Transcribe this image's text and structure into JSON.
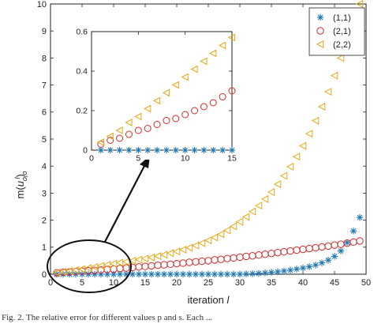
{
  "colors": {
    "series_1_1": "#1f77b4",
    "series_2_1": "#d62728",
    "series_2_2": "#e6a817",
    "axis": "#222222"
  },
  "chart_data": [
    {
      "type": "scatter",
      "title": "",
      "xlabel": "iteration l",
      "ylabel": "m(u_{o,o}^l)",
      "xlim": [
        0,
        50
      ],
      "ylim": [
        0,
        10
      ],
      "xticks": [
        "0",
        "5",
        "10",
        "15",
        "20",
        "25",
        "30",
        "35",
        "40",
        "45",
        "50"
      ],
      "yticks": [
        "0",
        "1",
        "2",
        "3",
        "4",
        "5",
        "6",
        "7",
        "8",
        "9",
        "10"
      ],
      "legend_position": "top-right",
      "legend": [
        "(1,1)",
        "(2,1)",
        "(2,2)"
      ],
      "series": [
        {
          "name": "(1,1)",
          "marker": "asterisk",
          "color": "#1f77b4",
          "x": [
            1,
            2,
            3,
            4,
            5,
            6,
            7,
            8,
            9,
            10,
            11,
            12,
            13,
            14,
            15,
            16,
            17,
            18,
            19,
            20,
            21,
            22,
            23,
            24,
            25,
            26,
            27,
            28,
            29,
            30,
            31,
            32,
            33,
            34,
            35,
            36,
            37,
            38,
            39,
            40,
            41,
            42,
            43,
            44,
            45,
            46,
            47,
            48,
            49
          ],
          "values": [
            0,
            0,
            0,
            0,
            0,
            0,
            0,
            0,
            0,
            0,
            0,
            0,
            0,
            0,
            0,
            0,
            0,
            0,
            0,
            0,
            0,
            0,
            0,
            0,
            0,
            0,
            0,
            0,
            0,
            0,
            0.01,
            0.02,
            0.03,
            0.05,
            0.07,
            0.09,
            0.12,
            0.15,
            0.19,
            0.23,
            0.28,
            0.34,
            0.42,
            0.52,
            0.66,
            0.86,
            1.17,
            1.6,
            2.1
          ]
        },
        {
          "name": "(2,1)",
          "marker": "circle",
          "color": "#d62728",
          "x": [
            1,
            2,
            3,
            4,
            5,
            6,
            7,
            8,
            9,
            10,
            11,
            12,
            13,
            14,
            15,
            16,
            17,
            18,
            19,
            20,
            21,
            22,
            23,
            24,
            25,
            26,
            27,
            28,
            29,
            30,
            31,
            32,
            33,
            34,
            35,
            36,
            37,
            38,
            39,
            40,
            41,
            42,
            43,
            44,
            45,
            46,
            47,
            48,
            49
          ],
          "values": [
            0.05,
            0.07,
            0.08,
            0.1,
            0.11,
            0.13,
            0.14,
            0.16,
            0.18,
            0.19,
            0.21,
            0.23,
            0.25,
            0.27,
            0.29,
            0.31,
            0.33,
            0.35,
            0.37,
            0.39,
            0.41,
            0.44,
            0.46,
            0.48,
            0.5,
            0.53,
            0.55,
            0.58,
            0.6,
            0.63,
            0.66,
            0.68,
            0.71,
            0.74,
            0.77,
            0.8,
            0.83,
            0.86,
            0.89,
            0.92,
            0.95,
            0.98,
            1.01,
            1.04,
            1.08,
            1.11,
            1.15,
            1.19,
            1.23
          ]
        },
        {
          "name": "(2,2)",
          "marker": "triangle-left",
          "color": "#e6a817",
          "x": [
            1,
            2,
            3,
            4,
            5,
            6,
            7,
            8,
            9,
            10,
            11,
            12,
            13,
            14,
            15,
            16,
            17,
            18,
            19,
            20,
            21,
            22,
            23,
            24,
            25,
            26,
            27,
            28,
            29,
            30,
            31,
            32,
            33,
            34,
            35,
            36,
            37,
            38,
            39,
            40,
            41,
            42,
            43,
            44,
            45,
            46,
            47,
            48,
            49
          ],
          "values": [
            0.06,
            0.09,
            0.12,
            0.16,
            0.19,
            0.23,
            0.27,
            0.31,
            0.35,
            0.39,
            0.43,
            0.46,
            0.5,
            0.54,
            0.58,
            0.62,
            0.67,
            0.72,
            0.78,
            0.84,
            0.91,
            0.98,
            1.06,
            1.15,
            1.25,
            1.36,
            1.48,
            1.62,
            1.77,
            1.94,
            2.12,
            2.32,
            2.54,
            2.78,
            3.04,
            3.33,
            3.64,
            3.98,
            4.35,
            4.75,
            5.2,
            5.68,
            6.2,
            6.75,
            7.35,
            8.0,
            8.7,
            9.25,
            10.0
          ]
        }
      ]
    },
    {
      "type": "scatter",
      "title": "",
      "xlabel": "",
      "ylabel": "",
      "xlim": [
        0,
        15
      ],
      "ylim": [
        0,
        0.6
      ],
      "xticks": [
        "0",
        "5",
        "10",
        "15"
      ],
      "yticks": [
        "0",
        "0.2",
        "0.4",
        "0.6"
      ],
      "series": [
        {
          "name": "(1,1)",
          "marker": "asterisk",
          "color": "#1f77b4",
          "x": [
            1,
            2,
            3,
            4,
            5,
            6,
            7,
            8,
            9,
            10,
            11,
            12,
            13,
            14,
            15
          ],
          "values": [
            0,
            0,
            0,
            0,
            0,
            0,
            0,
            0,
            0,
            0,
            0,
            0,
            0,
            0,
            0
          ]
        },
        {
          "name": "(2,1)",
          "marker": "circle",
          "color": "#d62728",
          "x": [
            1,
            2,
            3,
            4,
            5,
            6,
            7,
            8,
            9,
            10,
            11,
            12,
            13,
            14,
            15
          ],
          "values": [
            0.03,
            0.05,
            0.06,
            0.08,
            0.1,
            0.11,
            0.13,
            0.15,
            0.16,
            0.18,
            0.2,
            0.22,
            0.24,
            0.27,
            0.3
          ]
        },
        {
          "name": "(2,2)",
          "marker": "triangle-left",
          "color": "#e6a817",
          "x": [
            1,
            2,
            3,
            4,
            5,
            6,
            7,
            8,
            9,
            10,
            11,
            12,
            13,
            14,
            15
          ],
          "values": [
            0.04,
            0.07,
            0.1,
            0.14,
            0.17,
            0.21,
            0.25,
            0.29,
            0.33,
            0.37,
            0.41,
            0.45,
            0.49,
            0.53,
            0.57
          ]
        }
      ]
    }
  ],
  "labels": {
    "ylabel_main": "m(",
    "ylabel_sym": "u",
    "ylabel_sub": "o,o",
    "ylabel_sup": "l",
    "ylabel_close": ")",
    "xlabel_main": "iteration ",
    "xlabel_var": "l"
  },
  "caption": "Fig. 2.    The relative error for different values p and s. Each ..."
}
